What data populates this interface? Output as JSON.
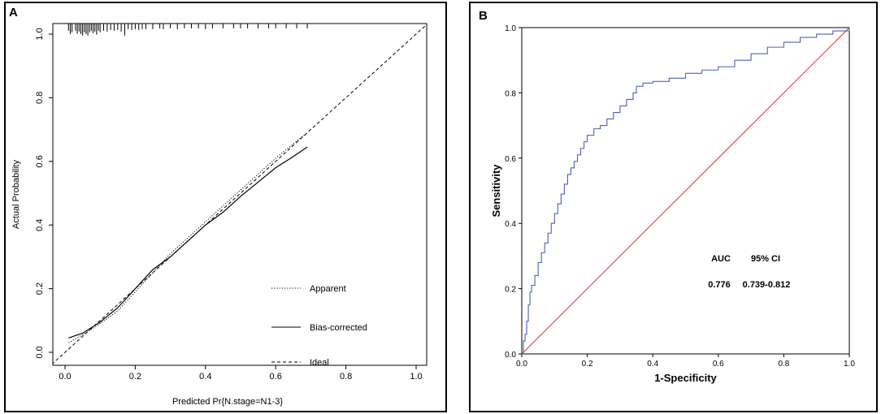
{
  "chart_data": [
    {
      "panel_label": "A",
      "type": "line",
      "title": "",
      "xlabel": "Predicted Pr{N.stage=N1-3}",
      "ylabel": "Actual Probability",
      "xlim": [
        0,
        1
      ],
      "ylim": [
        0,
        1
      ],
      "xticks": [
        "0.0",
        "0.2",
        "0.4",
        "0.6",
        "0.8",
        "1.0"
      ],
      "yticks": [
        "0.0",
        "0.2",
        "0.4",
        "0.6",
        "0.8",
        "1.0"
      ],
      "series": [
        {
          "name": "Apparent",
          "style": "dotted",
          "x": [
            0.01,
            0.05,
            0.1,
            0.15,
            0.2,
            0.25,
            0.3,
            0.35,
            0.4,
            0.45,
            0.5,
            0.55,
            0.6,
            0.65,
            0.69
          ],
          "y": [
            0.03,
            0.055,
            0.09,
            0.13,
            0.19,
            0.25,
            0.31,
            0.36,
            0.41,
            0.46,
            0.51,
            0.56,
            0.61,
            0.655,
            0.69
          ]
        },
        {
          "name": "Bias-corrected",
          "style": "solid",
          "x": [
            0.01,
            0.05,
            0.1,
            0.15,
            0.2,
            0.25,
            0.3,
            0.35,
            0.4,
            0.45,
            0.5,
            0.55,
            0.6,
            0.65,
            0.69
          ],
          "y": [
            0.045,
            0.06,
            0.095,
            0.14,
            0.2,
            0.26,
            0.3,
            0.35,
            0.4,
            0.44,
            0.49,
            0.535,
            0.58,
            0.615,
            0.645
          ]
        },
        {
          "name": "Ideal",
          "style": "dashed",
          "x": [
            -0.05,
            1.05
          ],
          "y": [
            -0.05,
            1.05
          ]
        }
      ],
      "rug_x": [
        0.01,
        0.015,
        0.02,
        0.03,
        0.035,
        0.04,
        0.045,
        0.05,
        0.055,
        0.06,
        0.065,
        0.07,
        0.075,
        0.08,
        0.085,
        0.09,
        0.095,
        0.1,
        0.11,
        0.12,
        0.13,
        0.14,
        0.15,
        0.16,
        0.17,
        0.18,
        0.19,
        0.2,
        0.21,
        0.22,
        0.23,
        0.25,
        0.27,
        0.28,
        0.3,
        0.32,
        0.34,
        0.36,
        0.38,
        0.4,
        0.42,
        0.45,
        0.48,
        0.5,
        0.52,
        0.55,
        0.58,
        0.6,
        0.63,
        0.66,
        0.69
      ],
      "rug_h": [
        0.03,
        0.05,
        0.04,
        0.03,
        0.05,
        0.035,
        0.05,
        0.06,
        0.04,
        0.05,
        0.06,
        0.04,
        0.03,
        0.045,
        0.035,
        0.055,
        0.03,
        0.04,
        0.03,
        0.035,
        0.025,
        0.03,
        0.025,
        0.035,
        0.06,
        0.02,
        0.025,
        0.02,
        0.025,
        0.02,
        0.02,
        0.02,
        0.015,
        0.02,
        0.015,
        0.02,
        0.015,
        0.015,
        0.015,
        0.02,
        0.015,
        0.015,
        0.015,
        0.015,
        0.015,
        0.015,
        0.015,
        0.015,
        0.015,
        0.015,
        0.015
      ],
      "legend": [
        "Apparent",
        "Bias-corrected",
        "Ideal"
      ],
      "legend_position": "bottom-right"
    },
    {
      "panel_label": "B",
      "type": "line",
      "title": "",
      "xlabel": "1-Specificity",
      "ylabel": "Sensitivity",
      "xlim": [
        0,
        1
      ],
      "ylim": [
        0,
        1
      ],
      "xticks": [
        "0.0",
        "0.2",
        "0.4",
        "0.6",
        "0.8",
        "1.0"
      ],
      "yticks": [
        "0.0",
        "0.2",
        "0.4",
        "0.6",
        "0.8",
        "1.0"
      ],
      "series": [
        {
          "name": "ROC",
          "color": "#5060b8",
          "x": [
            0.0,
            0.005,
            0.01,
            0.015,
            0.02,
            0.025,
            0.03,
            0.04,
            0.05,
            0.06,
            0.07,
            0.08,
            0.09,
            0.1,
            0.11,
            0.12,
            0.13,
            0.14,
            0.15,
            0.16,
            0.17,
            0.18,
            0.19,
            0.2,
            0.22,
            0.24,
            0.26,
            0.28,
            0.3,
            0.32,
            0.34,
            0.35,
            0.37,
            0.4,
            0.45,
            0.5,
            0.55,
            0.6,
            0.65,
            0.7,
            0.75,
            0.8,
            0.85,
            0.9,
            0.95,
            1.0
          ],
          "y": [
            0.0,
            0.04,
            0.06,
            0.1,
            0.15,
            0.19,
            0.21,
            0.24,
            0.28,
            0.31,
            0.34,
            0.37,
            0.4,
            0.43,
            0.46,
            0.49,
            0.52,
            0.55,
            0.57,
            0.59,
            0.61,
            0.63,
            0.65,
            0.67,
            0.69,
            0.7,
            0.72,
            0.74,
            0.76,
            0.78,
            0.8,
            0.82,
            0.83,
            0.835,
            0.845,
            0.86,
            0.87,
            0.88,
            0.9,
            0.92,
            0.94,
            0.955,
            0.97,
            0.98,
            0.99,
            1.0
          ]
        },
        {
          "name": "Reference",
          "color": "#e0302c",
          "x": [
            0,
            1
          ],
          "y": [
            0,
            1
          ]
        }
      ],
      "table": {
        "header": [
          "AUC",
          "95% CI"
        ],
        "row": [
          "0.776",
          "0.739-0.812"
        ]
      }
    }
  ]
}
